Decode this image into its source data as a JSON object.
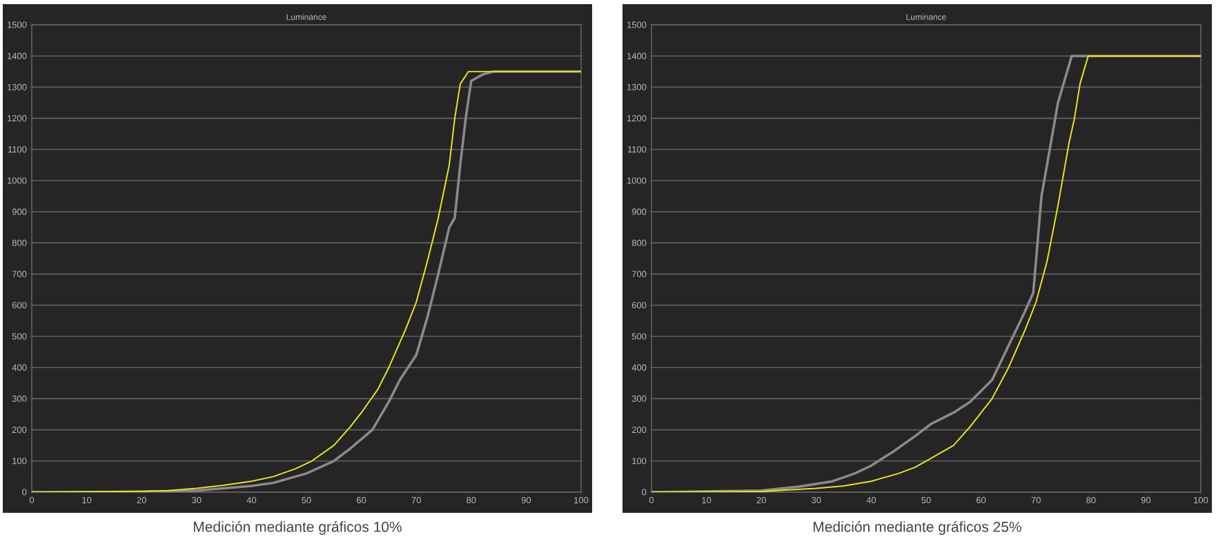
{
  "chart_data": [
    {
      "type": "line",
      "title": "Luminance",
      "annotations": [
        "Medición mediante gráficos 10%"
      ],
      "xlim": [
        0,
        100
      ],
      "ylim": [
        0,
        1500
      ],
      "xticks": [
        0,
        10,
        20,
        30,
        40,
        50,
        60,
        70,
        80,
        90,
        100
      ],
      "yticks": [
        0,
        100,
        200,
        300,
        400,
        500,
        600,
        700,
        800,
        900,
        1000,
        1100,
        1200,
        1300,
        1400,
        1500
      ],
      "grid": "y",
      "marker": "none",
      "line_style": "solid",
      "series": [
        {
          "color": "#8a8a8a",
          "x": [
            0,
            20,
            30,
            40,
            44,
            50,
            55,
            58,
            62,
            65,
            67,
            70,
            72,
            74,
            76,
            77,
            78,
            79,
            80,
            82,
            84,
            100
          ],
          "values": [
            0,
            1,
            5,
            20,
            30,
            60,
            100,
            140,
            200,
            290,
            360,
            440,
            560,
            700,
            850,
            880,
            1050,
            1200,
            1320,
            1340,
            1350,
            1350
          ]
        },
        {
          "color": "#e6e617",
          "x": [
            0,
            10,
            20,
            25,
            30,
            35,
            40,
            44,
            48,
            51,
            55,
            58,
            60,
            63,
            65,
            68,
            70,
            72,
            74,
            76,
            77,
            78,
            79.5,
            100
          ],
          "values": [
            0,
            1,
            3,
            5,
            12,
            22,
            35,
            50,
            75,
            100,
            150,
            210,
            255,
            330,
            400,
            520,
            610,
            740,
            880,
            1050,
            1200,
            1310,
            1350,
            1350
          ]
        }
      ]
    },
    {
      "type": "line",
      "title": "Luminance",
      "annotations": [
        "Medición mediante gráficos 25%"
      ],
      "xlim": [
        0,
        100
      ],
      "ylim": [
        0,
        1500
      ],
      "xticks": [
        0,
        10,
        20,
        30,
        40,
        50,
        60,
        70,
        80,
        90,
        100
      ],
      "yticks": [
        0,
        100,
        200,
        300,
        400,
        500,
        600,
        700,
        800,
        900,
        1000,
        1100,
        1200,
        1300,
        1400,
        1500
      ],
      "grid": "y",
      "marker": "none",
      "line_style": "solid",
      "series": [
        {
          "color": "#8a8a8a",
          "x": [
            0,
            20,
            27,
            33,
            37,
            40,
            44,
            48,
            51,
            55,
            58,
            62,
            65,
            68,
            69.5,
            71,
            73,
            74,
            76.5,
            100
          ],
          "values": [
            0,
            5,
            18,
            35,
            60,
            85,
            130,
            180,
            220,
            255,
            290,
            360,
            470,
            580,
            640,
            950,
            1150,
            1250,
            1400,
            1400
          ]
        },
        {
          "color": "#e6e617",
          "x": [
            0,
            20,
            25,
            30,
            35,
            40,
            45,
            48,
            51,
            55,
            58,
            60,
            62,
            65,
            68,
            70,
            72,
            74,
            76,
            77,
            78,
            79.5,
            100
          ],
          "values": [
            0,
            2,
            7,
            12,
            20,
            35,
            60,
            80,
            110,
            150,
            210,
            255,
            300,
            400,
            520,
            610,
            740,
            920,
            1120,
            1200,
            1310,
            1400,
            1400
          ]
        }
      ]
    }
  ]
}
